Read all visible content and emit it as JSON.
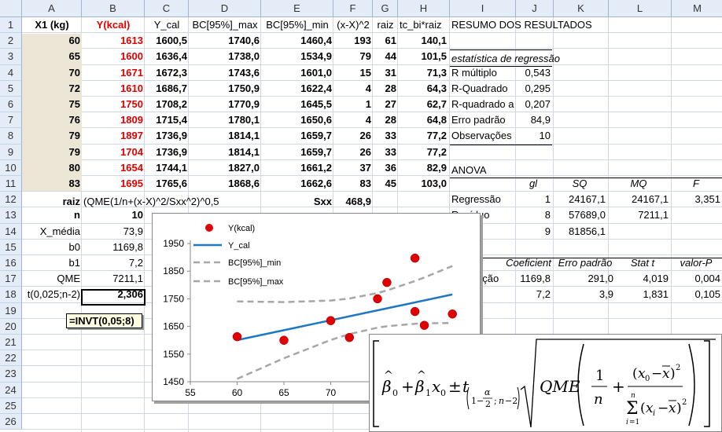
{
  "columns": [
    "A",
    "B",
    "C",
    "D",
    "E",
    "F",
    "G",
    "H",
    "I",
    "J",
    "K",
    "L",
    "M"
  ],
  "rows": [
    "1",
    "2",
    "3",
    "4",
    "5",
    "6",
    "7",
    "8",
    "9",
    "10",
    "11",
    "12",
    "13",
    "14",
    "15",
    "16",
    "17",
    "18",
    "19",
    "20",
    "21",
    "22",
    "23",
    "24",
    "25",
    "26"
  ],
  "headers": {
    "a": "X1 (kg)",
    "b": "Y(kcal)",
    "c": "Y_cal",
    "d": "BC[95%]_max",
    "e": "BC[95%]_min",
    "f": "(x-X)^2",
    "g": "raiz",
    "h": "tc_bi*raiz",
    "i": "RESUMO DOS RESULTADOS"
  },
  "table": [
    {
      "x": "60",
      "y": "1613",
      "ycal": "1600,5",
      "max": "1740,6",
      "min": "1460,4",
      "dx": "193",
      "raiz": "61",
      "tc": "140,1"
    },
    {
      "x": "65",
      "y": "1600",
      "ycal": "1636,4",
      "max": "1738,0",
      "min": "1534,9",
      "dx": "79",
      "raiz": "44",
      "tc": "101,5"
    },
    {
      "x": "70",
      "y": "1671",
      "ycal": "1672,3",
      "max": "1743,6",
      "min": "1601,0",
      "dx": "15",
      "raiz": "31",
      "tc": "71,3"
    },
    {
      "x": "72",
      "y": "1610",
      "ycal": "1686,7",
      "max": "1750,9",
      "min": "1622,4",
      "dx": "4",
      "raiz": "28",
      "tc": "64,3"
    },
    {
      "x": "75",
      "y": "1750",
      "ycal": "1708,2",
      "max": "1770,9",
      "min": "1645,5",
      "dx": "1",
      "raiz": "27",
      "tc": "62,7"
    },
    {
      "x": "76",
      "y": "1809",
      "ycal": "1715,4",
      "max": "1780,1",
      "min": "1650,6",
      "dx": "4",
      "raiz": "28",
      "tc": "64,8"
    },
    {
      "x": "79",
      "y": "1897",
      "ycal": "1736,9",
      "max": "1814,1",
      "min": "1659,7",
      "dx": "26",
      "raiz": "33",
      "tc": "77,2"
    },
    {
      "x": "79",
      "y": "1704",
      "ycal": "1736,9",
      "max": "1814,1",
      "min": "1659,7",
      "dx": "26",
      "raiz": "33",
      "tc": "77,2"
    },
    {
      "x": "80",
      "y": "1654",
      "ycal": "1744,1",
      "max": "1827,0",
      "min": "1661,2",
      "dx": "37",
      "raiz": "36",
      "tc": "82,9"
    },
    {
      "x": "83",
      "y": "1695",
      "ycal": "1765,6",
      "max": "1868,6",
      "min": "1662,6",
      "dx": "83",
      "raiz": "45",
      "tc": "103,0"
    }
  ],
  "row12": {
    "label": "raiz",
    "formula": "(QME(1/n+(x-X)^2/Sxx^2)^0,5",
    "sxx_label": "Sxx",
    "sxx": "468,9"
  },
  "stats_left": [
    {
      "label": "n",
      "value": "10"
    },
    {
      "label": "X_média",
      "value": "73,9"
    },
    {
      "label": "b0",
      "value": "1169,8"
    },
    {
      "label": "b1",
      "value": "7,2"
    },
    {
      "label": "QME",
      "value": "7211,1"
    },
    {
      "label": "t(0,025;n-2)",
      "value": "2,306"
    }
  ],
  "tooltip": "=INVT(0,05;8)",
  "regression": {
    "title": "estatística de regressão",
    "rows": [
      {
        "label": "R múltiplo",
        "value": "0,543"
      },
      {
        "label": "R-Quadrado",
        "value": "0,295"
      },
      {
        "label": "R-quadrado a",
        "value": "0,207"
      },
      {
        "label": "Erro padrão",
        "value": "84,9"
      },
      {
        "label": "Observações",
        "value": "10"
      }
    ]
  },
  "anova": {
    "title": "ANOVA",
    "headers": [
      "gl",
      "SQ",
      "MQ",
      "F"
    ],
    "rows": [
      {
        "label": "Regressão",
        "gl": "1",
        "sq": "24167,1",
        "mq": "24167,1",
        "f": "3,351"
      },
      {
        "label": "Resíduo",
        "gl": "8",
        "sq": "57689,0",
        "mq": "7211,1",
        "f": ""
      },
      {
        "label": "",
        "gl": "9",
        "sq": "81856,1",
        "mq": "",
        "f": ""
      }
    ]
  },
  "coef": {
    "headers": [
      "Coeficient",
      "Erro padrão",
      "Stat t",
      "valor-P"
    ],
    "rows": [
      {
        "label": "eção",
        "coef": "1169,8",
        "se": "291,0",
        "t": "4,019",
        "p": "0,004"
      },
      {
        "label": ")",
        "coef": "7,2",
        "se": "3,9",
        "t": "1,831",
        "p": "0,105"
      }
    ]
  },
  "colors": {
    "red": "#e00000",
    "blue": "#1f77c4",
    "dash": "#a6a6a6",
    "tan": "#ece6d6"
  },
  "chart_data": {
    "type": "scatter",
    "series": [
      {
        "name": "Y(kcal)",
        "type": "scatter",
        "x": [
          60,
          65,
          70,
          72,
          75,
          76,
          79,
          79,
          80,
          83
        ],
        "y": [
          1613,
          1600,
          1671,
          1610,
          1750,
          1809,
          1897,
          1704,
          1654,
          1695
        ]
      },
      {
        "name": "Y_cal",
        "type": "line",
        "x": [
          60,
          83
        ],
        "y": [
          1600.5,
          1765.6
        ]
      },
      {
        "name": "BC[95%]_min",
        "type": "line",
        "x": [
          60,
          65,
          70,
          72,
          75,
          76,
          79,
          80,
          83
        ],
        "y": [
          1460.4,
          1534.9,
          1601.0,
          1622.4,
          1645.5,
          1650.6,
          1659.7,
          1661.2,
          1662.6
        ]
      },
      {
        "name": "BC[95%]_max",
        "type": "line",
        "x": [
          60,
          65,
          70,
          72,
          75,
          76,
          79,
          80,
          83
        ],
        "y": [
          1740.6,
          1738.0,
          1743.6,
          1750.9,
          1770.9,
          1780.1,
          1814.1,
          1827.0,
          1868.6
        ]
      }
    ],
    "x_ticks": [
      "55",
      "60",
      "65",
      "70",
      "75"
    ],
    "y_ticks": [
      "1950",
      "1850",
      "1750",
      "1650",
      "1550",
      "1450"
    ],
    "xlim": [
      55,
      83
    ],
    "ylim": [
      1450,
      1950
    ],
    "legend": "top-left"
  }
}
